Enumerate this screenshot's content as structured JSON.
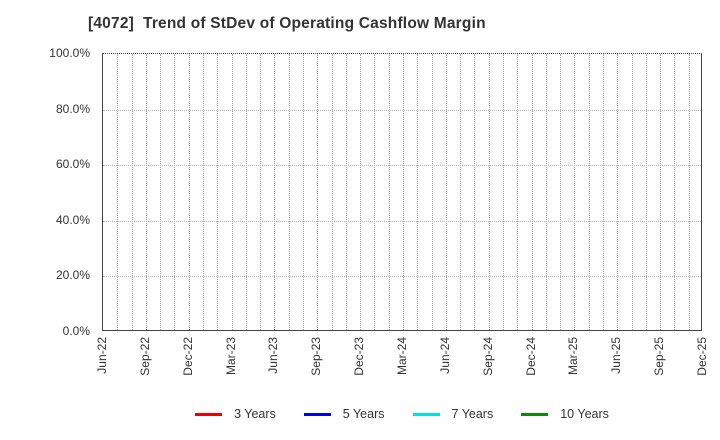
{
  "chart_data": {
    "type": "line",
    "title": "[4072]  Trend of StDev of Operating Cashflow Margin",
    "categories": [
      "Jun-22",
      "Sep-22",
      "Dec-22",
      "Mar-23",
      "Jun-23",
      "Sep-23",
      "Dec-23",
      "Mar-24",
      "Jun-24",
      "Sep-24",
      "Dec-24",
      "Mar-25",
      "Jun-25",
      "Sep-25",
      "Dec-25"
    ],
    "months_per_tick": 3,
    "minor_gridline_unit": "month",
    "xlabel": "",
    "ylabel": "",
    "ylim": [
      0,
      100
    ],
    "y_ticks": [
      {
        "label": "0.0%",
        "value": 0
      },
      {
        "label": "20.0%",
        "value": 20
      },
      {
        "label": "40.0%",
        "value": 40
      },
      {
        "label": "60.0%",
        "value": 60
      },
      {
        "label": "80.0%",
        "value": 80
      },
      {
        "label": "100.0%",
        "value": 100
      }
    ],
    "grid": true,
    "legend_position": "bottom",
    "series": [
      {
        "name": "3 Years",
        "color": "#ee0000",
        "values": []
      },
      {
        "name": "5 Years",
        "color": "#0000ee",
        "values": []
      },
      {
        "name": "7 Years",
        "color": "#00e0e8",
        "values": []
      },
      {
        "name": "10 Years",
        "color": "#0b8a0b",
        "values": []
      }
    ],
    "plotted_data_visible": "none - plot area is empty, only gridlines"
  },
  "colors": {
    "background": "#ffffff",
    "title_text": "#333333",
    "axis_text": "#333333",
    "spine": "#444444",
    "grid_vertical": "#aaaaaa",
    "grid_horizontal": "#b4b4b4"
  }
}
